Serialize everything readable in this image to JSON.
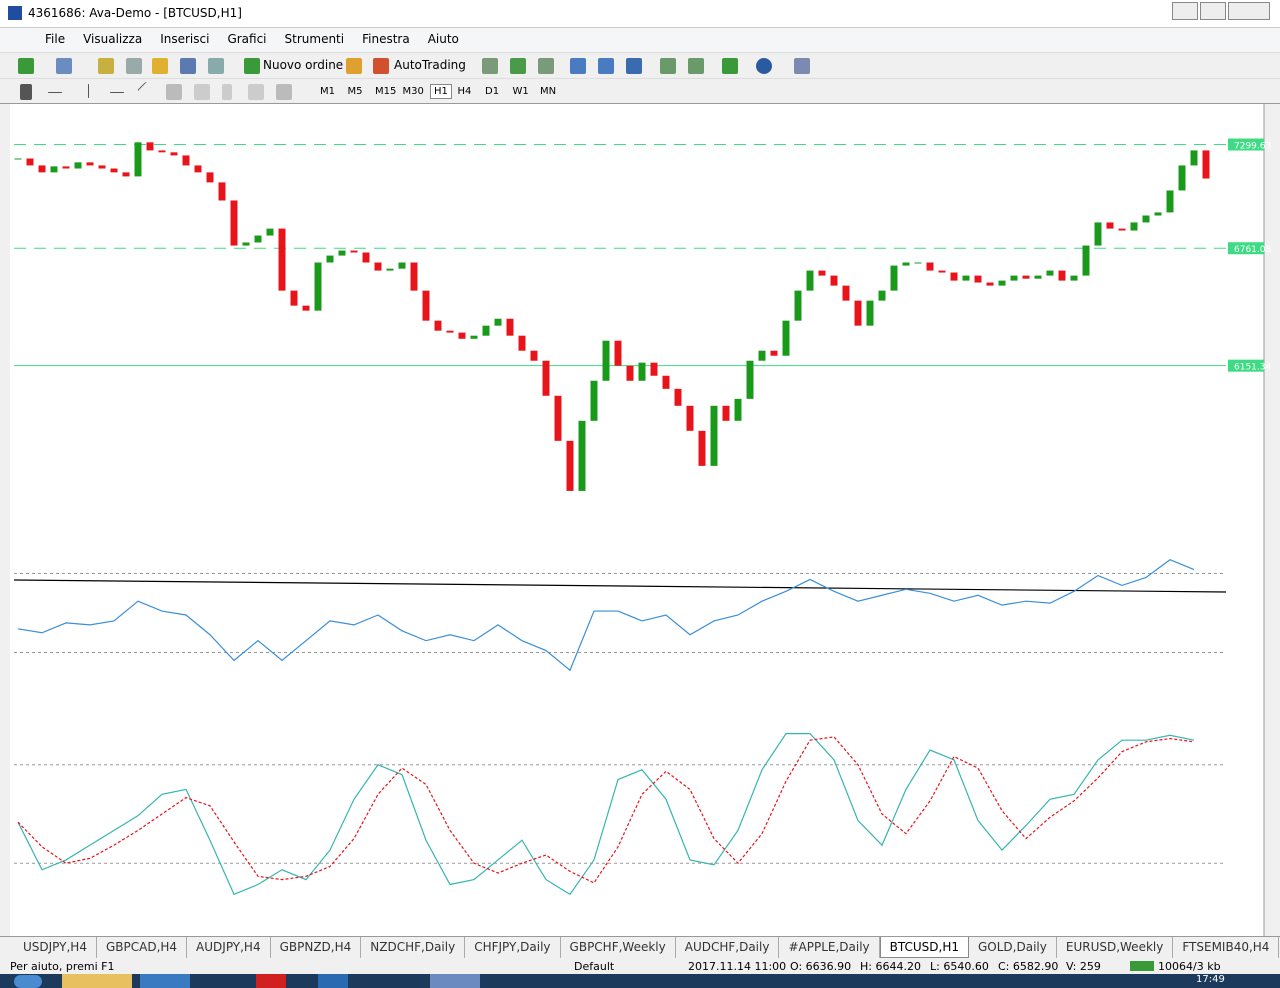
{
  "window": {
    "title": "4361686: Ava-Demo - [BTCUSD,H1]",
    "menu": [
      "File",
      "Visualizza",
      "Inserisci",
      "Grafici",
      "Strumenti",
      "Finestra",
      "Aiuto"
    ],
    "toolbar": {
      "new_order": "Nuovo ordine",
      "autotrading": "AutoTrading"
    },
    "timeframes": [
      "M1",
      "M5",
      "M15",
      "M30",
      "H1",
      "H4",
      "D1",
      "W1",
      "MN"
    ],
    "active_timeframe": 4
  },
  "chart_data": [
    {
      "type": "candlestick",
      "ylim": [
        5350,
        7510
      ],
      "up_color": "#1a9a1a",
      "down_color": "#e8141b",
      "levels": [
        7299.63,
        6761.08,
        6151.34
      ],
      "level_styles": [
        "dashed",
        "dashed",
        "solid"
      ],
      "level_color": "#3ddc84",
      "values": [
        7227,
        7191,
        7155,
        7186,
        7175,
        7207,
        7191,
        7175,
        7155,
        7134,
        7311,
        7269,
        7259,
        7243,
        7191,
        7155,
        7103,
        7009,
        6775,
        6791,
        6827,
        6863,
        6541,
        6463,
        6437,
        6687,
        6723,
        6749,
        6739,
        6687,
        6645,
        6655,
        6687,
        6541,
        6385,
        6333,
        6323,
        6291,
        6307,
        6359,
        6395,
        6307,
        6229,
        6177,
        5995,
        5761,
        5501,
        5865,
        6073,
        6281,
        6151,
        6073,
        6167,
        6099,
        6031,
        5943,
        5813,
        5631,
        5943,
        5865,
        5979,
        6177,
        6229,
        6203,
        6385,
        6541,
        6645,
        6619,
        6567,
        6489,
        6359,
        6489,
        6541,
        6671,
        6687,
        6687,
        6645,
        6635,
        6593,
        6619,
        6583,
        6567,
        6593,
        6619,
        6603,
        6619,
        6645,
        6593,
        6619,
        6775,
        6895,
        6863,
        6853,
        6895,
        6931,
        6947,
        7061,
        7191,
        7269,
        7123
      ]
    },
    {
      "type": "line",
      "ylim": [
        11,
        87
      ],
      "levels": [
        30,
        70
      ],
      "series": [
        {
          "color": "#3a8fd9",
          "values": [
            42,
            40,
            45,
            44,
            46,
            56,
            51,
            49,
            39,
            26,
            36,
            26,
            36,
            46,
            44,
            49,
            41,
            36,
            39,
            36,
            44,
            36,
            31,
            21,
            51,
            51,
            46,
            49,
            39,
            46,
            49,
            56,
            61,
            67,
            61,
            56,
            59,
            62,
            60,
            56,
            59,
            54,
            56,
            55,
            61,
            69,
            64,
            68,
            77,
            72
          ]
        }
      ]
    },
    {
      "type": "line",
      "ylim": [
        0,
        100
      ],
      "levels": [
        20,
        80
      ],
      "series": [
        {
          "color": "#35b5b0",
          "values": [
            45,
            16,
            22,
            31,
            40,
            49,
            62,
            65,
            34,
            1,
            7,
            16,
            10,
            28,
            59,
            80,
            74,
            34,
            7,
            10,
            22,
            34,
            10,
            1,
            22,
            71,
            77,
            59,
            22,
            19,
            40,
            77,
            99,
            99,
            83,
            46,
            31,
            65,
            89,
            83,
            46,
            28,
            43,
            59,
            62,
            83,
            95,
            95,
            98,
            95
          ]
        },
        {
          "color": "#e8141b",
          "dashed": true,
          "values": [
            45,
            30,
            20,
            23,
            31,
            40,
            50,
            60,
            55,
            33,
            12,
            10,
            12,
            18,
            35,
            62,
            78,
            68,
            40,
            20,
            14,
            20,
            25,
            15,
            8,
            30,
            62,
            76,
            65,
            35,
            20,
            38,
            70,
            95,
            97,
            80,
            50,
            38,
            58,
            85,
            78,
            52,
            35,
            48,
            58,
            72,
            88,
            94,
            96,
            94
          ]
        }
      ]
    }
  ],
  "tabs": [
    "USDJPY,H4",
    "GBPCAD,H4",
    "AUDJPY,H4",
    "GBPNZD,H4",
    "NZDCHF,Daily",
    "CHFJPY,Daily",
    "GBPCHF,Weekly",
    "AUDCHF,Daily",
    "#APPLE,Daily",
    "BTCUSD,H1",
    "GOLD,Daily",
    "EURUSD,Weekly",
    "FTSEMIB40,H4"
  ],
  "active_tab": 9,
  "status": {
    "help": "Per aiuto, premi F1",
    "profile": "Default",
    "time": "2017.11.14 11:00",
    "open": "O: 6636.90",
    "high": "H: 6644.20",
    "low": "L: 6540.60",
    "close": "C: 6582.90",
    "volume": "V: 259",
    "traffic": "10064/3 kb"
  },
  "clock": "17:49"
}
